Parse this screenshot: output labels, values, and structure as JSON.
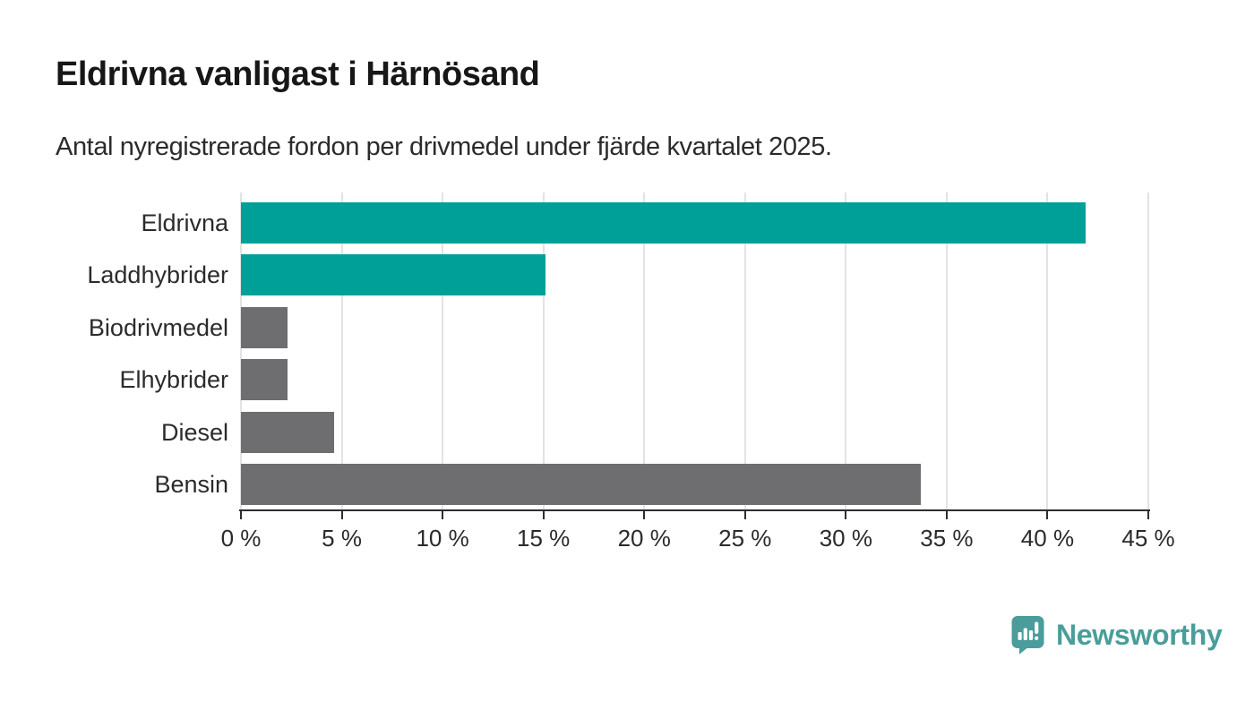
{
  "title": "Eldrivna vanligast i Härnösand",
  "subtitle": "Antal nyregistrerade fordon per drivmedel under fjärde kvartalet 2025.",
  "chart_data": {
    "type": "bar",
    "orientation": "horizontal",
    "title": "Eldrivna vanligast i Härnösand",
    "subtitle": "Antal nyregistrerade fordon per drivmedel under fjärde kvartalet 2025.",
    "categories": [
      "Eldrivna",
      "Laddhybrider",
      "Biodrivmedel",
      "Elhybrider",
      "Diesel",
      "Bensin"
    ],
    "values": [
      41.9,
      15.1,
      2.3,
      2.3,
      4.6,
      33.7
    ],
    "unit": "%",
    "bar_colors": [
      "#00a099",
      "#00a099",
      "#6e6e70",
      "#6e6e70",
      "#6e6e70",
      "#6e6e70"
    ],
    "xlim": [
      0,
      45
    ],
    "x_ticks": [
      0,
      5,
      10,
      15,
      20,
      25,
      30,
      35,
      40,
      45
    ],
    "x_tick_labels": [
      "0 %",
      "5 %",
      "10 %",
      "15 %",
      "20 %",
      "25 %",
      "30 %",
      "35 %",
      "40 %",
      "45 %"
    ],
    "grid": true,
    "legend": false,
    "value_labels": false
  },
  "colors": {
    "accent_teal": "#00a099",
    "bar_gray": "#6e6e70",
    "gridline": "#e3e3e3",
    "axis": "#2e2e2e",
    "title_text": "#171717",
    "body_text": "#2b2b2b",
    "logo_teal": "#4a9d9a"
  },
  "logo": {
    "text": "Newsworthy",
    "icon": "bar-chart-speech-bubble-icon"
  }
}
